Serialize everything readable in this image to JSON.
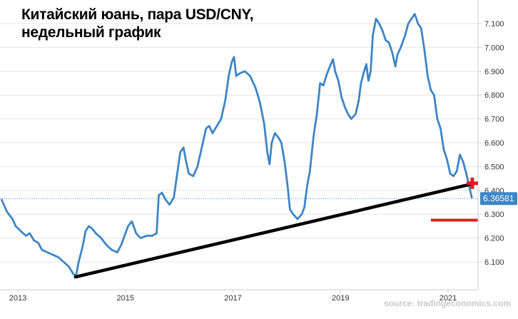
{
  "title": {
    "line1": "Китайский юань, пара USD/CNY,",
    "line2": "недельный график"
  },
  "source": "source: tradingeconomics.com",
  "colors": {
    "series": "#3d85c6",
    "series_peak": "#9bbfe3",
    "trendline": "#000000",
    "support_line": "#e8191f",
    "marker": "#e8191f",
    "current_label_bg": "#3d85c6",
    "grid": "#e6e6e6"
  },
  "chart_data": {
    "type": "line",
    "title": "Китайский юань, пара USD/CNY, недельный график",
    "xlabel": "",
    "ylabel": "",
    "xlim": [
      2012.7,
      2021.55
    ],
    "ylim": [
      6.02,
      7.17
    ],
    "x_ticks": [
      2013,
      2015,
      2017,
      2019,
      2021
    ],
    "y_ticks": [
      6.1,
      6.2,
      6.3,
      6.4,
      6.5,
      6.6,
      6.7,
      6.8,
      6.9,
      7.0,
      7.1
    ],
    "y_tick_labels": [
      "6.100",
      "6.200",
      "6.300",
      "6.400",
      "6.500",
      "6.600",
      "6.700",
      "6.800",
      "6.900",
      "7.000",
      "7.100"
    ],
    "grid": {
      "horizontal": true,
      "vertical": false
    },
    "current_value": 6.36581,
    "current_value_label": "6.36581",
    "series": [
      {
        "values": [
          [
            2012.7,
            6.36
          ],
          [
            2012.8,
            6.31
          ],
          [
            2012.9,
            6.28
          ],
          [
            2012.96,
            6.25
          ],
          [
            2013.05,
            6.23
          ],
          [
            2013.15,
            6.21
          ],
          [
            2013.22,
            6.22
          ],
          [
            2013.3,
            6.19
          ],
          [
            2013.38,
            6.18
          ],
          [
            2013.45,
            6.15
          ],
          [
            2013.55,
            6.14
          ],
          [
            2013.65,
            6.13
          ],
          [
            2013.75,
            6.12
          ],
          [
            2013.85,
            6.1
          ],
          [
            2013.95,
            6.08
          ],
          [
            2014.03,
            6.05
          ],
          [
            2014.08,
            6.04
          ],
          [
            2014.13,
            6.1
          ],
          [
            2014.2,
            6.16
          ],
          [
            2014.26,
            6.23
          ],
          [
            2014.32,
            6.25
          ],
          [
            2014.38,
            6.24
          ],
          [
            2014.45,
            6.22
          ],
          [
            2014.55,
            6.2
          ],
          [
            2014.65,
            6.17
          ],
          [
            2014.75,
            6.15
          ],
          [
            2014.85,
            6.14
          ],
          [
            2014.92,
            6.17
          ],
          [
            2015.0,
            6.22
          ],
          [
            2015.05,
            6.25
          ],
          [
            2015.12,
            6.27
          ],
          [
            2015.2,
            6.22
          ],
          [
            2015.28,
            6.2
          ],
          [
            2015.4,
            6.21
          ],
          [
            2015.5,
            6.21
          ],
          [
            2015.58,
            6.22
          ],
          [
            2015.62,
            6.38
          ],
          [
            2015.68,
            6.39
          ],
          [
            2015.75,
            6.36
          ],
          [
            2015.82,
            6.34
          ],
          [
            2015.9,
            6.37
          ],
          [
            2015.95,
            6.45
          ],
          [
            2016.02,
            6.56
          ],
          [
            2016.08,
            6.58
          ],
          [
            2016.12,
            6.53
          ],
          [
            2016.18,
            6.47
          ],
          [
            2016.26,
            6.46
          ],
          [
            2016.34,
            6.5
          ],
          [
            2016.42,
            6.58
          ],
          [
            2016.5,
            6.66
          ],
          [
            2016.56,
            6.67
          ],
          [
            2016.62,
            6.64
          ],
          [
            2016.7,
            6.67
          ],
          [
            2016.78,
            6.7
          ],
          [
            2016.86,
            6.78
          ],
          [
            2016.92,
            6.88
          ],
          [
            2016.98,
            6.94
          ],
          [
            2017.02,
            6.96
          ],
          [
            2017.06,
            6.88
          ],
          [
            2017.12,
            6.89
          ],
          [
            2017.22,
            6.9
          ],
          [
            2017.32,
            6.88
          ],
          [
            2017.42,
            6.83
          ],
          [
            2017.5,
            6.77
          ],
          [
            2017.58,
            6.68
          ],
          [
            2017.64,
            6.56
          ],
          [
            2017.68,
            6.51
          ],
          [
            2017.72,
            6.6
          ],
          [
            2017.78,
            6.64
          ],
          [
            2017.85,
            6.62
          ],
          [
            2017.9,
            6.6
          ],
          [
            2017.96,
            6.52
          ],
          [
            2018.02,
            6.41
          ],
          [
            2018.06,
            6.32
          ],
          [
            2018.12,
            6.3
          ],
          [
            2018.2,
            6.28
          ],
          [
            2018.28,
            6.3
          ],
          [
            2018.33,
            6.33
          ],
          [
            2018.38,
            6.42
          ],
          [
            2018.43,
            6.48
          ],
          [
            2018.5,
            6.63
          ],
          [
            2018.56,
            6.72
          ],
          [
            2018.62,
            6.85
          ],
          [
            2018.68,
            6.84
          ],
          [
            2018.75,
            6.89
          ],
          [
            2018.82,
            6.93
          ],
          [
            2018.86,
            6.95
          ],
          [
            2018.9,
            6.9
          ],
          [
            2018.96,
            6.86
          ],
          [
            2019.02,
            6.79
          ],
          [
            2019.08,
            6.75
          ],
          [
            2019.14,
            6.72
          ],
          [
            2019.2,
            6.7
          ],
          [
            2019.28,
            6.72
          ],
          [
            2019.34,
            6.78
          ],
          [
            2019.38,
            6.85
          ],
          [
            2019.44,
            6.9
          ],
          [
            2019.48,
            6.93
          ],
          [
            2019.52,
            6.86
          ],
          [
            2019.56,
            6.9
          ],
          [
            2019.6,
            7.05
          ],
          [
            2019.66,
            7.12
          ],
          [
            2019.72,
            7.1
          ],
          [
            2019.78,
            7.07
          ],
          [
            2019.84,
            7.03
          ],
          [
            2019.9,
            7.02
          ],
          [
            2019.96,
            6.98
          ],
          [
            2020.02,
            6.92
          ],
          [
            2020.06,
            6.97
          ],
          [
            2020.12,
            7.0
          ],
          [
            2020.2,
            7.05
          ],
          [
            2020.26,
            7.1
          ],
          [
            2020.32,
            7.12
          ],
          [
            2020.38,
            7.14
          ],
          [
            2020.44,
            7.1
          ],
          [
            2020.5,
            7.08
          ],
          [
            2020.56,
            6.99
          ],
          [
            2020.62,
            6.88
          ],
          [
            2020.68,
            6.82
          ],
          [
            2020.74,
            6.8
          ],
          [
            2020.8,
            6.7
          ],
          [
            2020.86,
            6.66
          ],
          [
            2020.92,
            6.57
          ],
          [
            2020.98,
            6.53
          ],
          [
            2021.04,
            6.47
          ],
          [
            2021.1,
            6.46
          ],
          [
            2021.16,
            6.48
          ],
          [
            2021.22,
            6.55
          ],
          [
            2021.28,
            6.52
          ],
          [
            2021.34,
            6.47
          ],
          [
            2021.38,
            6.43
          ],
          [
            2021.41,
            6.4
          ],
          [
            2021.44,
            6.37
          ]
        ]
      }
    ],
    "annotations": {
      "trendline": [
        [
          2014.07,
          6.037
        ],
        [
          2021.5,
          6.43
        ]
      ],
      "support_line": [
        [
          2020.68,
          6.275
        ],
        [
          2021.55,
          6.275
        ]
      ],
      "marker": [
        2021.45,
        6.43
      ]
    }
  }
}
